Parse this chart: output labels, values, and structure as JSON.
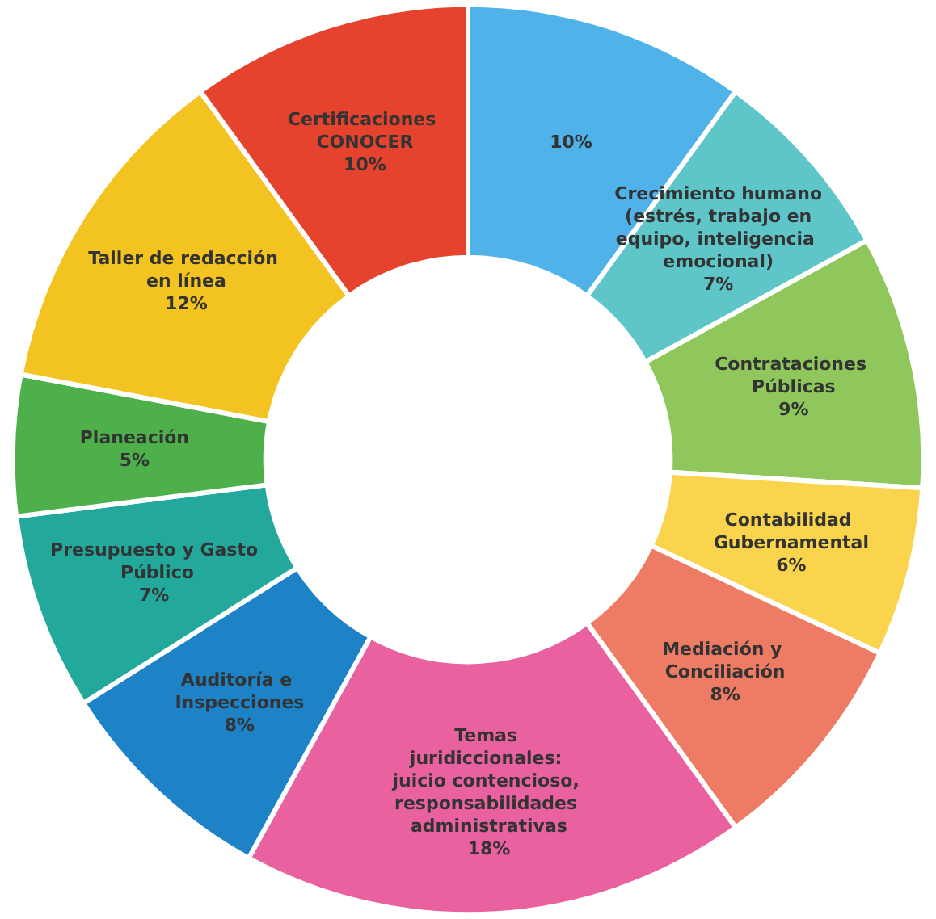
{
  "chart_data": {
    "type": "donut",
    "categories": [
      null,
      "Crecimiento humano (estrés, trabajo en equipo, inteligencia emocional)",
      "Contrataciones Públicas",
      "Contabilidad Gubernamental",
      "Mediación y Conciliación",
      "Temas juridiccionales: juicio contencioso, responsabilidades administrativas",
      "Auditoría e Inspecciones",
      "Presupuesto y Gasto Público",
      "Planeación",
      "Taller de redacción en línea",
      "Certificaciones CONOCER"
    ],
    "values": [
      10,
      7,
      9,
      6,
      8,
      18,
      8,
      7,
      5,
      12,
      10
    ],
    "value_labels": [
      "10%",
      "7%",
      "9%",
      "6%",
      "8%",
      "18%",
      "8%",
      "7%",
      "5%",
      "12%",
      "10%"
    ],
    "colors": [
      "#4fb2e9",
      "#5ec6c8",
      "#8fc75c",
      "#f9d44c",
      "#ee7b64",
      "#e9629f",
      "#1e82c6",
      "#22a99b",
      "#4db04a",
      "#f3c421",
      "#e5432e"
    ],
    "legend": false
  }
}
